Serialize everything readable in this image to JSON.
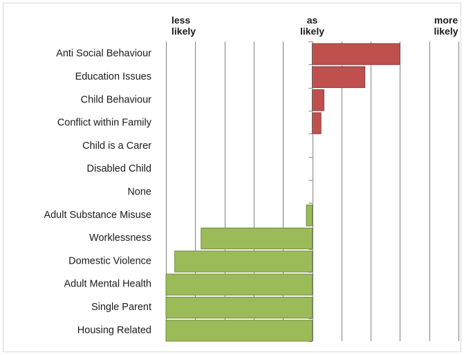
{
  "chart_data": {
    "type": "bar",
    "orientation": "horizontal",
    "scale_labels": [
      {
        "lines": [
          "less",
          "likely"
        ],
        "position": "left"
      },
      {
        "lines": [
          "as",
          "likely"
        ],
        "position": "center"
      },
      {
        "lines": [
          "more",
          "likely"
        ],
        "position": "right"
      }
    ],
    "xlim": [
      -5,
      5
    ],
    "grid": true,
    "categories": [
      "Anti Social Behaviour",
      "Education Issues",
      "Child Behaviour",
      "Conflict within Family",
      "Child is a Carer",
      "Disabled Child",
      "None",
      "Adult Substance Misuse",
      "Worklessness",
      "Domestic Violence",
      "Adult Mental Health",
      "Single Parent",
      "Housing Related"
    ],
    "values": [
      3.0,
      1.8,
      0.4,
      0.3,
      0,
      0,
      0,
      -0.2,
      -3.8,
      -4.7,
      -5.0,
      -5.0,
      -5.0
    ],
    "colors": {
      "positive": "#c0504d",
      "positive_border": "#8c3836",
      "negative": "#9bbb59",
      "negative_border": "#71893f",
      "grid": "#7f7f7f",
      "axis": "#7f7f7f"
    }
  }
}
